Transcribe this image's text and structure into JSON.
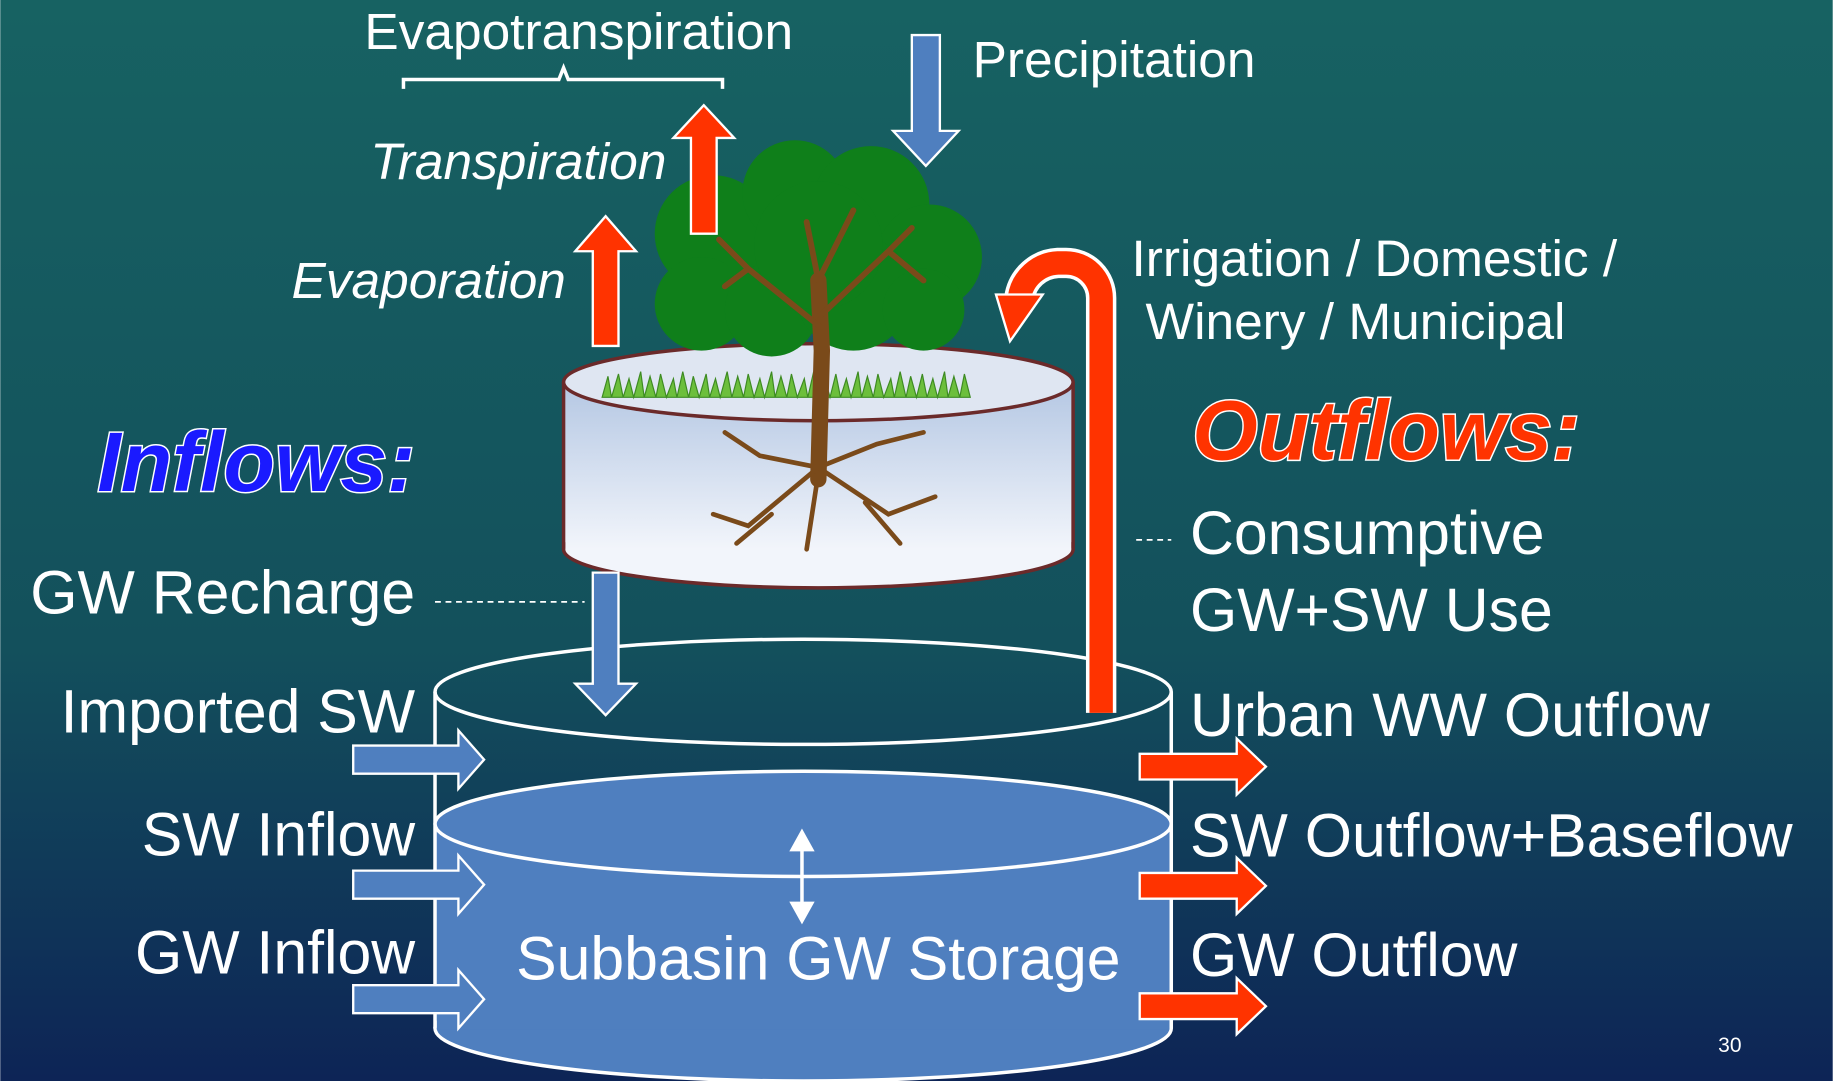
{
  "evapotranspiration": {
    "label": "Evapotranspiration",
    "transpiration": "Transpiration",
    "evaporation": "Evaporation"
  },
  "precipitation": "Precipitation",
  "applied_water": [
    "Irrigation / Domestic /",
    "Winery / Municipal"
  ],
  "inflows": {
    "heading": "Inflows:",
    "items": [
      "GW Recharge",
      "Imported SW",
      "SW Inflow",
      "GW Inflow"
    ]
  },
  "outflows": {
    "heading": "Outflows:",
    "consumptive": [
      "Consumptive",
      "GW+SW Use"
    ],
    "items": [
      "Urban WW Outflow",
      "SW Outflow+Baseflow",
      "GW Outflow"
    ]
  },
  "storage": "Subbasin GW Storage",
  "slide_number": 30
}
